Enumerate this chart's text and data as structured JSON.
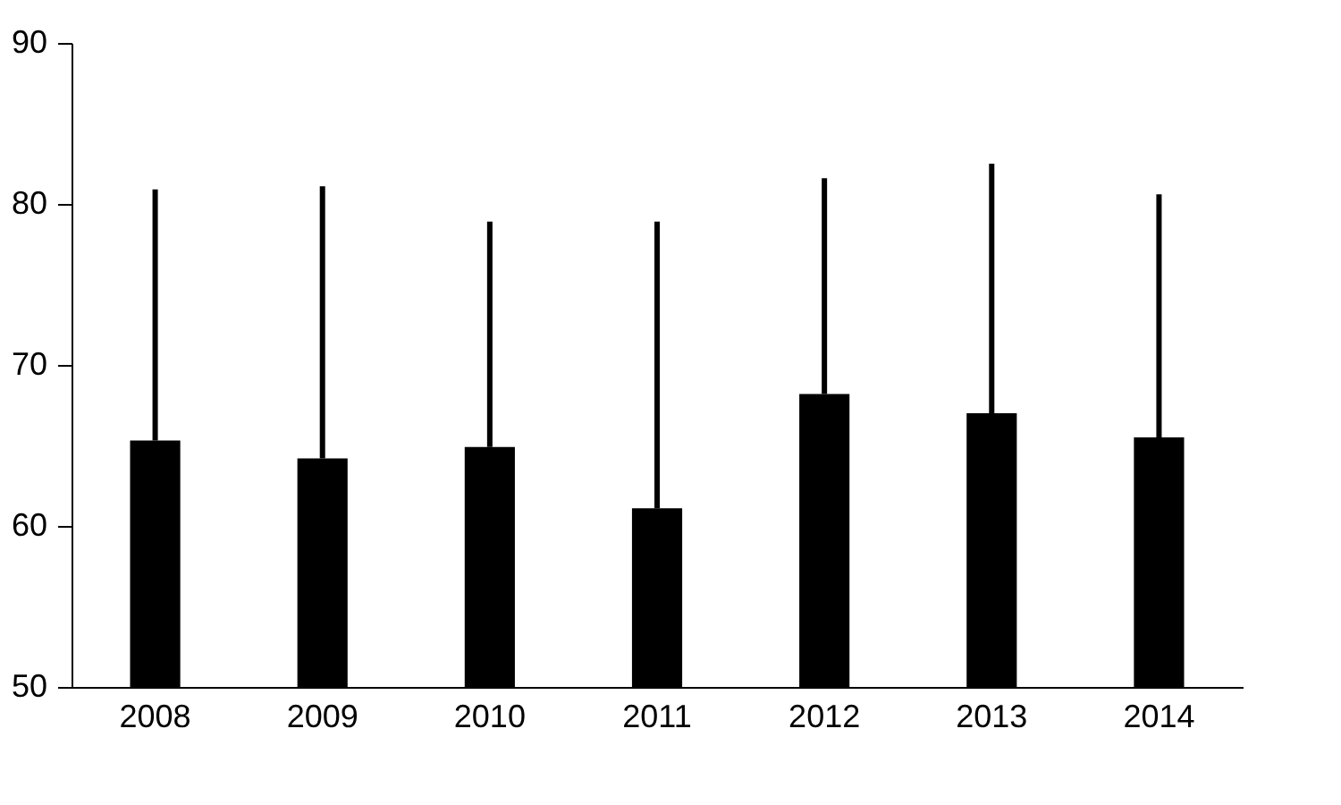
{
  "chart_data": {
    "type": "bar",
    "categories": [
      "2008",
      "2009",
      "2010",
      "2011",
      "2012",
      "2013",
      "2014"
    ],
    "values": [
      65.3,
      64.2,
      64.9,
      61.1,
      68.2,
      67.0,
      65.5
    ],
    "errors": [
      [
        65.3,
        80.9
      ],
      [
        64.2,
        81.1
      ],
      [
        64.9,
        78.9
      ],
      [
        61.1,
        78.9
      ],
      [
        68.2,
        81.6
      ],
      [
        67.0,
        82.5
      ],
      [
        65.5,
        80.6
      ]
    ],
    "color": "#000000",
    "ylim": [
      50,
      90
    ],
    "yticks": [
      50,
      60,
      70,
      80,
      90
    ],
    "grid": false
  }
}
